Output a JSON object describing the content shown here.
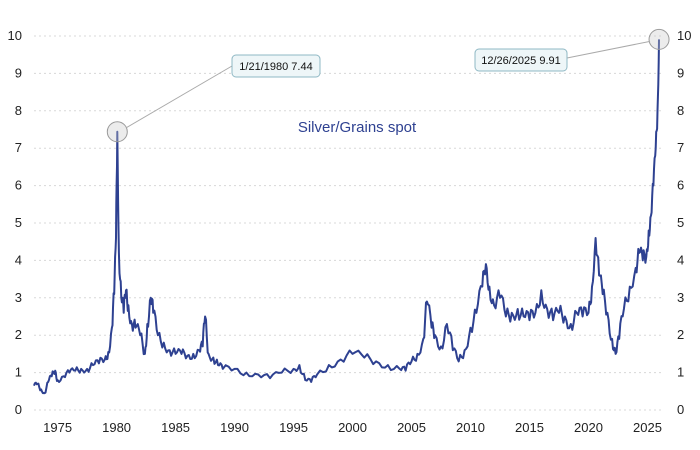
{
  "chart_data": {
    "type": "line",
    "title": "",
    "xlabel": "",
    "ylabel": "",
    "xlim": [
      1973.0,
      2026.4
    ],
    "ylim": [
      0,
      10
    ],
    "x_ticks": [
      "1975",
      "1980",
      "1985",
      "1990",
      "1995",
      "2000",
      "2005",
      "2010",
      "2015",
      "2020",
      "2025"
    ],
    "y_ticks": [
      "0",
      "1",
      "2",
      "3",
      "4",
      "5",
      "6",
      "7",
      "8",
      "9",
      "10"
    ],
    "grid": "horizontal dotted",
    "line_color": "#2e4191",
    "series": [
      {
        "name": "Silver/Grains spot",
        "x": [
          1973.0,
          1973.3,
          1973.6,
          1973.9,
          1974.2,
          1974.5,
          1974.8,
          1975.0,
          1975.5,
          1976.0,
          1976.5,
          1977.0,
          1977.5,
          1978.0,
          1978.5,
          1979.0,
          1979.3,
          1979.6,
          1979.8,
          1979.95,
          1980.06,
          1980.2,
          1980.4,
          1980.6,
          1980.8,
          1981.0,
          1981.3,
          1981.6,
          1982.0,
          1982.4,
          1982.6,
          1982.9,
          1983.1,
          1983.5,
          1984.0,
          1984.5,
          1985.0,
          1985.5,
          1986.0,
          1986.5,
          1987.0,
          1987.3,
          1987.5,
          1987.8,
          1988.2,
          1988.6,
          1989.0,
          1990.0,
          1991.0,
          1992.0,
          1993.0,
          1994.0,
          1995.0,
          1995.5,
          1996.0,
          1996.5,
          1997.0,
          1998.0,
          1999.0,
          2000.0,
          2001.0,
          2002.0,
          2003.0,
          2004.0,
          2004.5,
          2005.0,
          2005.5,
          2006.0,
          2006.3,
          2006.7,
          2007.0,
          2007.5,
          2008.0,
          2008.5,
          2009.0,
          2009.5,
          2010.0,
          2010.5,
          2011.0,
          2011.3,
          2011.6,
          2012.0,
          2012.5,
          2013.0,
          2013.5,
          2014.0,
          2014.5,
          2015.0,
          2015.5,
          2016.0,
          2016.5,
          2017.0,
          2017.5,
          2018.0,
          2018.5,
          2019.0,
          2019.5,
          2020.0,
          2020.3,
          2020.6,
          2020.9,
          2021.2,
          2021.6,
          2022.0,
          2022.3,
          2022.6,
          2023.0,
          2023.5,
          2024.0,
          2024.3,
          2024.6,
          2024.9,
          2025.1,
          2025.3,
          2025.5,
          2025.7,
          2025.85,
          2025.98
        ],
        "values": [
          0.65,
          0.7,
          0.55,
          0.45,
          0.75,
          0.9,
          1.05,
          0.8,
          0.9,
          1.0,
          1.05,
          1.1,
          1.1,
          1.2,
          1.25,
          1.35,
          1.55,
          2.2,
          3.1,
          4.6,
          7.44,
          4.2,
          3.0,
          2.6,
          3.2,
          2.8,
          2.3,
          2.2,
          2.0,
          1.5,
          2.3,
          3.0,
          2.6,
          2.0,
          1.8,
          1.6,
          1.5,
          1.5,
          1.45,
          1.5,
          1.6,
          1.7,
          2.5,
          1.5,
          1.4,
          1.2,
          1.1,
          1.1,
          1.0,
          0.95,
          0.85,
          1.0,
          1.1,
          1.2,
          0.8,
          0.75,
          0.95,
          1.2,
          1.35,
          1.5,
          1.4,
          1.3,
          1.2,
          1.1,
          1.05,
          1.3,
          1.5,
          1.9,
          2.9,
          2.2,
          2.0,
          1.7,
          2.3,
          1.6,
          1.3,
          1.6,
          2.2,
          2.6,
          3.3,
          3.9,
          3.3,
          2.8,
          3.0,
          2.5,
          2.6,
          2.7,
          2.5,
          2.4,
          2.6,
          3.2,
          2.7,
          2.4,
          2.6,
          2.5,
          2.3,
          2.6,
          2.5,
          2.6,
          3.3,
          4.6,
          3.6,
          3.1,
          2.6,
          1.9,
          1.5,
          1.9,
          2.7,
          3.3,
          3.8,
          4.2,
          4.0,
          4.1,
          4.8,
          5.2,
          6.0,
          7.0,
          8.0,
          9.91
        ]
      }
    ],
    "annotations": [
      {
        "x": 1980.06,
        "y": 7.44,
        "text": "1/21/1980 7.44"
      },
      {
        "x": 2025.98,
        "y": 9.91,
        "text": "12/26/2025 9.91"
      }
    ]
  }
}
